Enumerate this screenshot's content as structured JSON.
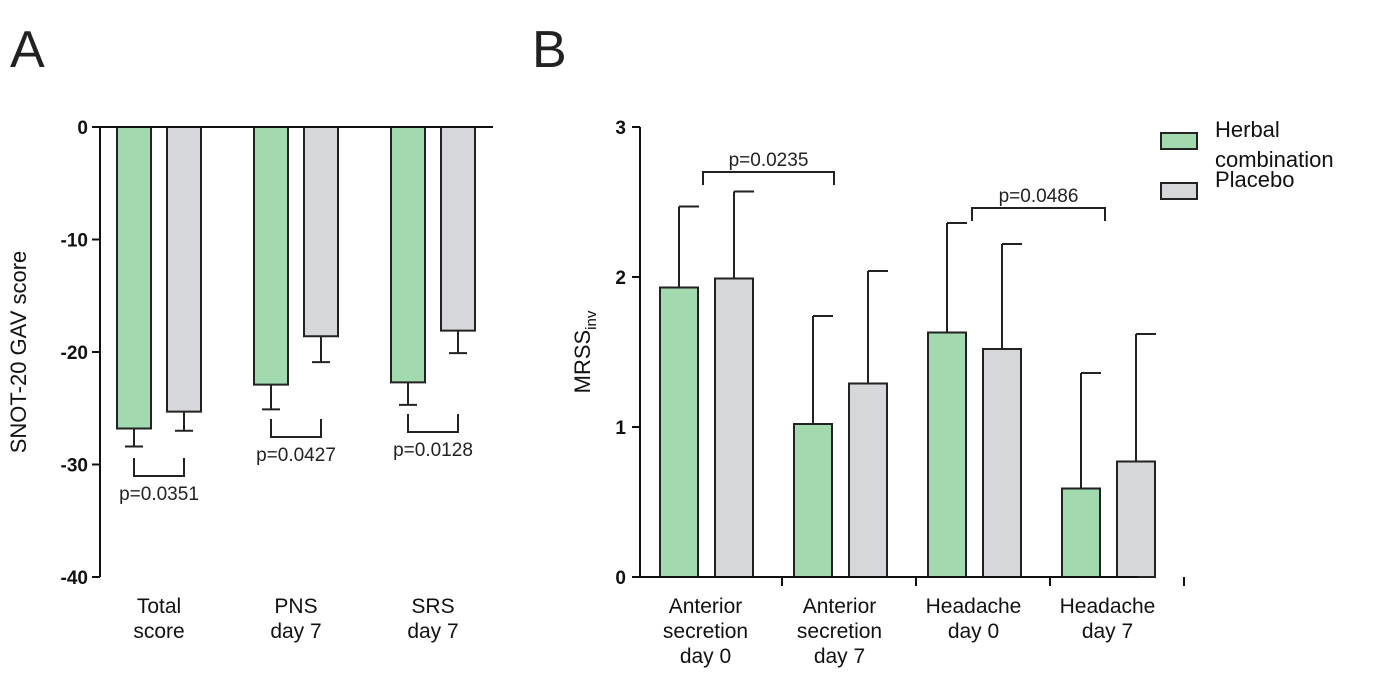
{
  "panels": {
    "a": {
      "letter": "A"
    },
    "b": {
      "letter": "B"
    }
  },
  "colors": {
    "herbal": "#a3d9ae",
    "placebo": "#d6d7da",
    "outline": "#222222"
  },
  "chart_data": [
    {
      "type": "bar",
      "panel": "A",
      "ylabel": "SNOT-20 GAV score",
      "ylim": [
        -40,
        0
      ],
      "yticks": [
        0,
        -10,
        -20,
        -30,
        -40
      ],
      "categories": [
        [
          "Total",
          "score"
        ],
        [
          "PNS",
          "day 7"
        ],
        [
          "SRS",
          "day 7"
        ]
      ],
      "series": [
        {
          "values": [
            -26.8,
            -22.9,
            -22.7
          ],
          "errors": [
            1.6,
            2.2,
            2.0
          ]
        },
        {
          "values": [
            -25.3,
            -18.6,
            -18.1
          ],
          "errors": [
            1.7,
            2.3,
            2.0
          ]
        }
      ],
      "annotations": [
        "p=0.0351",
        "p=0.0427",
        "p=0.0128"
      ]
    },
    {
      "type": "bar",
      "panel": "B",
      "ylabel": "MRSS",
      "ylabel_sub": "inv",
      "ylim": [
        0,
        3
      ],
      "yticks": [
        0,
        1,
        2,
        3
      ],
      "categories": [
        [
          "Anterior",
          "secretion",
          "day 0"
        ],
        [
          "Anterior",
          "secretion",
          "day 7"
        ],
        [
          "Headache",
          "day 0"
        ],
        [
          "Headache",
          "day 7"
        ]
      ],
      "series": [
        {
          "name": "Herbal combination",
          "values": [
            1.93,
            1.02,
            1.63,
            0.59
          ],
          "errors": [
            0.54,
            0.72,
            0.73,
            0.77
          ]
        },
        {
          "name": "Placebo",
          "values": [
            1.99,
            1.29,
            1.52,
            0.77
          ],
          "errors": [
            0.58,
            0.75,
            0.7,
            0.85
          ]
        }
      ],
      "legend": {
        "position": "top-right",
        "labels": [
          [
            "Herbal",
            "combination"
          ],
          [
            "Placebo"
          ]
        ]
      },
      "annotations": [
        "p=0.0235",
        "p=0.0486"
      ]
    }
  ]
}
